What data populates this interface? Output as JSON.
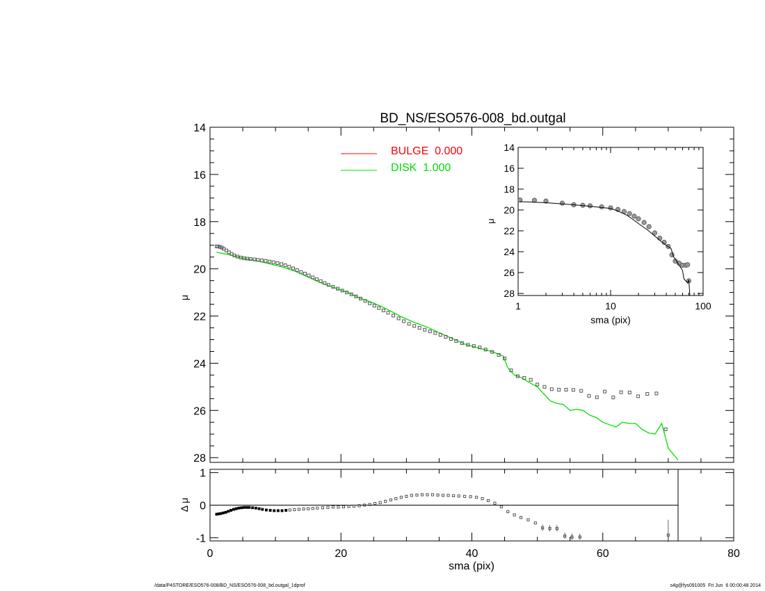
{
  "footer": {
    "path": "/data/P4STORE/ESO576-008/BD_NS/ESO576-008_bd.outgal_1dprof",
    "stamp": "s4g@fys091005  Fri Jun  6 00:00:48 2014"
  },
  "colors": {
    "bulge": "#ff0000",
    "disk": "#00e000",
    "data": "#555555",
    "axes": "#000000"
  },
  "chart_data": [
    {
      "id": "main-profile",
      "type": "scatter",
      "title": "BD_NS/ESO576-008_bd.outgal",
      "xlabel": "",
      "ylabel": "μ",
      "xlim": [
        0,
        80
      ],
      "ylim": [
        28.2,
        14
      ],
      "yticks": [
        14,
        16,
        18,
        20,
        22,
        24,
        26,
        28
      ],
      "legend": [
        {
          "label": "BULGE  0.000",
          "color": "#ff0000"
        },
        {
          "label": "DISK  1.000",
          "color": "#00e000"
        }
      ],
      "series": [
        {
          "name": "DISK",
          "kind": "line",
          "x": [
            1,
            3,
            5,
            7,
            9,
            11,
            13,
            15,
            17,
            19,
            21,
            23,
            25,
            27,
            29,
            31,
            33,
            35,
            37,
            39,
            41,
            43,
            44,
            44.8,
            45.5,
            46.5,
            47.5,
            49,
            50,
            51,
            52,
            53,
            54,
            55,
            56,
            57,
            58,
            59,
            60,
            61,
            62,
            63,
            64,
            65,
            66,
            67,
            68,
            69,
            70,
            71.5
          ],
          "y": [
            19.3,
            19.4,
            19.55,
            19.65,
            19.78,
            19.92,
            20.1,
            20.35,
            20.6,
            20.8,
            21.0,
            21.25,
            21.45,
            21.7,
            22.0,
            22.25,
            22.45,
            22.7,
            22.95,
            23.2,
            23.35,
            23.5,
            23.6,
            23.7,
            24.2,
            24.5,
            24.6,
            24.85,
            25.0,
            25.3,
            25.6,
            25.7,
            25.75,
            26.0,
            25.95,
            26.0,
            26.2,
            26.3,
            26.5,
            26.6,
            26.7,
            26.5,
            26.55,
            26.55,
            26.8,
            26.95,
            27.0,
            26.55,
            27.6,
            28.1
          ]
        },
        {
          "name": "data",
          "kind": "points",
          "x": [
            1.0,
            1.2,
            1.5,
            1.8,
            2.1,
            2.5,
            2.9,
            3.3,
            3.7,
            4.2,
            4.7,
            5.2,
            5.7,
            6.2,
            6.8,
            7.3,
            7.9,
            8.5,
            9.1,
            9.7,
            10.3,
            10.9,
            11.5,
            12.1,
            12.7,
            13.3,
            13.9,
            14.5,
            15.1,
            15.7,
            16.3,
            16.9,
            17.5,
            18.1,
            18.8,
            19.5,
            20.2,
            20.9,
            21.6,
            22.3,
            23.0,
            23.7,
            24.4,
            25.1,
            25.8,
            26.5,
            27.2,
            28.0,
            28.8,
            29.6,
            30.4,
            31.2,
            32.0,
            32.8,
            33.6,
            34.4,
            35.2,
            36.0,
            36.8,
            37.6,
            38.5,
            39.4,
            40.3,
            41.2,
            42.1,
            43.1,
            44.1,
            45.0,
            46.0,
            47.0,
            48.0,
            49.0,
            50.0,
            51.1,
            52.2,
            53.3,
            54.4,
            55.5,
            56.7,
            57.9,
            59.1,
            60.3,
            61.6,
            62.8,
            64.1,
            65.4,
            66.8,
            68.2,
            69.6
          ],
          "y": [
            19.05,
            19.05,
            19.07,
            19.1,
            19.15,
            19.22,
            19.3,
            19.37,
            19.43,
            19.48,
            19.52,
            19.55,
            19.57,
            19.58,
            19.6,
            19.62,
            19.64,
            19.66,
            19.69,
            19.72,
            19.76,
            19.8,
            19.85,
            19.91,
            19.98,
            20.05,
            20.13,
            20.2,
            20.28,
            20.36,
            20.44,
            20.52,
            20.6,
            20.68,
            20.76,
            20.84,
            20.92,
            21.0,
            21.08,
            21.17,
            21.26,
            21.36,
            21.46,
            21.56,
            21.66,
            21.76,
            21.86,
            21.98,
            22.1,
            22.22,
            22.33,
            22.42,
            22.5,
            22.58,
            22.65,
            22.72,
            22.8,
            22.88,
            22.97,
            23.06,
            23.15,
            23.22,
            23.27,
            23.33,
            23.42,
            23.52,
            23.65,
            23.8,
            24.3,
            24.55,
            24.62,
            24.7,
            24.9,
            25.0,
            25.1,
            25.12,
            25.12,
            25.13,
            25.17,
            25.38,
            25.44,
            25.2,
            25.45,
            25.23,
            25.24,
            25.4,
            25.3,
            25.28,
            26.8
          ]
        }
      ]
    },
    {
      "id": "inset-loglog",
      "type": "line",
      "xlabel": "sma (pix)",
      "ylabel": "μ",
      "xscale": "log",
      "xlim": [
        1,
        100
      ],
      "xticks": [
        1,
        10,
        100
      ],
      "ylim": [
        28.2,
        14
      ],
      "yticks": [
        14,
        16,
        18,
        20,
        22,
        24,
        26,
        28
      ],
      "series": [
        {
          "name": "model",
          "x": [
            1.05,
            2,
            4,
            6,
            10,
            12,
            15,
            18,
            20,
            25,
            30,
            35,
            40,
            45,
            48,
            50,
            55,
            60,
            62,
            65,
            68,
            70,
            72
          ],
          "y": [
            19.2,
            19.3,
            19.5,
            19.65,
            19.85,
            20.1,
            20.5,
            21.0,
            21.3,
            21.9,
            22.5,
            23.0,
            23.4,
            23.7,
            24.5,
            24.7,
            25.3,
            25.8,
            26.6,
            26.8,
            27.0,
            26.7,
            28.2
          ]
        },
        {
          "name": "data",
          "x": [
            1.05,
            1.5,
            2,
            3,
            4,
            5,
            6,
            8,
            10,
            12,
            14,
            16,
            18,
            20,
            23,
            26,
            30,
            34,
            38,
            42,
            46,
            50,
            55,
            60,
            65,
            68,
            70
          ],
          "y": [
            19.05,
            19.07,
            19.15,
            19.35,
            19.5,
            19.55,
            19.6,
            19.7,
            19.8,
            19.95,
            20.15,
            20.35,
            20.6,
            20.85,
            21.2,
            21.6,
            22.2,
            22.7,
            23.1,
            23.5,
            24.3,
            24.9,
            25.1,
            25.3,
            25.3,
            25.25,
            26.8
          ]
        }
      ]
    },
    {
      "id": "residuals",
      "type": "scatter",
      "xlabel": "sma (pix)",
      "ylabel": "Δ μ",
      "xlim": [
        0,
        80
      ],
      "xticks": [
        0,
        20,
        40,
        60,
        80
      ],
      "ylim": [
        -1.1,
        1.1
      ],
      "yticks": [
        -1,
        0,
        1
      ],
      "cutoff_x": 71.5,
      "series": [
        {
          "name": "residual",
          "x": [
            1.0,
            1.3,
            1.6,
            2.0,
            2.4,
            2.8,
            3.2,
            3.6,
            4.0,
            4.4,
            4.8,
            5.2,
            5.6,
            6.0,
            6.5,
            7.0,
            7.5,
            8.0,
            8.6,
            9.2,
            9.8,
            10.4,
            11.0,
            11.6,
            12.2,
            12.9,
            13.6,
            14.3,
            15.0,
            15.7,
            16.4,
            17.2,
            18.0,
            18.8,
            19.6,
            20.4,
            21.2,
            22.0,
            22.8,
            23.6,
            24.4,
            25.2,
            26.0,
            26.8,
            27.6,
            28.4,
            29.2,
            30.0,
            30.8,
            31.6,
            32.4,
            33.2,
            34.0,
            34.8,
            35.6,
            36.4,
            37.2,
            38.0,
            38.9,
            39.8,
            40.7,
            41.6,
            42.5,
            43.5,
            44.5,
            45.5,
            46.5,
            47.5,
            48.6,
            49.7,
            50.8,
            51.9,
            53.0,
            54.2,
            55.3,
            56.5,
            70.0
          ],
          "y": [
            -0.28,
            -0.27,
            -0.26,
            -0.24,
            -0.22,
            -0.19,
            -0.16,
            -0.13,
            -0.11,
            -0.09,
            -0.08,
            -0.07,
            -0.07,
            -0.07,
            -0.08,
            -0.09,
            -0.11,
            -0.13,
            -0.15,
            -0.16,
            -0.17,
            -0.17,
            -0.17,
            -0.16,
            -0.15,
            -0.14,
            -0.13,
            -0.12,
            -0.11,
            -0.1,
            -0.09,
            -0.08,
            -0.07,
            -0.06,
            -0.06,
            -0.05,
            -0.04,
            -0.03,
            -0.02,
            0.0,
            0.02,
            0.05,
            0.08,
            0.12,
            0.16,
            0.2,
            0.24,
            0.27,
            0.3,
            0.31,
            0.32,
            0.32,
            0.32,
            0.31,
            0.3,
            0.3,
            0.29,
            0.28,
            0.27,
            0.26,
            0.24,
            0.2,
            0.14,
            0.06,
            -0.05,
            -0.2,
            -0.3,
            -0.38,
            -0.45,
            -0.55,
            -0.7,
            -0.72,
            -0.72,
            -0.95,
            -0.98,
            -0.98,
            -0.92
          ]
        }
      ]
    }
  ]
}
